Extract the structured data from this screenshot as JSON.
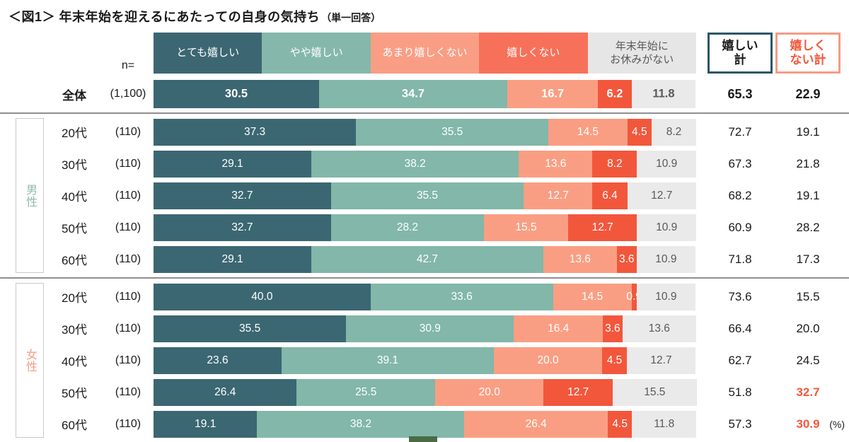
{
  "title": {
    "main": "＜図1＞ 年末年始を迎えるにあたっての自身の気持ち",
    "suffix": "（単一回答）"
  },
  "n_label": "n=",
  "unit_label": "(%)",
  "legend": [
    {
      "name": "very-happy",
      "lines": [
        "とても嬉しい"
      ],
      "color": "#3C6772",
      "text_color": "#FFFFFF"
    },
    {
      "name": "somewhat-happy",
      "lines": [
        "やや嬉しい"
      ],
      "color": "#85B8AA",
      "text_color": "#FFFFFF"
    },
    {
      "name": "not-very-happy",
      "lines": [
        "あまり嬉しくない"
      ],
      "color": "#F99E85",
      "text_color": "#FFFFFF"
    },
    {
      "name": "not-happy",
      "lines": [
        "嬉しくない"
      ],
      "color": "#F7715A",
      "text_color": "#FFFFFF"
    },
    {
      "name": "no-holiday",
      "lines": [
        "年末年始に",
        "お休みがない"
      ],
      "color": "#E6E6E6",
      "text_color": "#595959"
    }
  ],
  "segment_colors": [
    "#3B6772",
    "#82B7A9",
    "#FA9E83",
    "#F2573C",
    "#EAEAEA"
  ],
  "segment_text_colors": [
    "#FFFFFF",
    "#FFFFFF",
    "#FFFFFF",
    "#FFFFFF",
    "#595959"
  ],
  "totals_header": {
    "happy": {
      "lines": [
        "嬉しい",
        "計"
      ],
      "border_color": "#2C5661",
      "text_color": "#1A1A1A"
    },
    "unhappy": {
      "lines": [
        "嬉しく",
        "ない計"
      ],
      "border_color": "#F69B85",
      "text_color": "#F2583C"
    }
  },
  "sections": [
    {
      "group": null,
      "rows": [
        {
          "label": "全体",
          "n": "(1,100)",
          "values": [
            "30.5",
            "34.7",
            "16.7",
            "6.2",
            "11.8"
          ],
          "happy": "65.3",
          "unhappy": "22.9",
          "emphasis": true
        }
      ]
    },
    {
      "group": {
        "label": "男性",
        "color": "#8FB9AE"
      },
      "rows": [
        {
          "label": "20代",
          "n": "(110)",
          "values": [
            "37.3",
            "35.5",
            "14.5",
            "4.5",
            "8.2"
          ],
          "happy": "72.7",
          "unhappy": "19.1"
        },
        {
          "label": "30代",
          "n": "(110)",
          "values": [
            "29.1",
            "38.2",
            "13.6",
            "8.2",
            "10.9"
          ],
          "happy": "67.3",
          "unhappy": "21.8"
        },
        {
          "label": "40代",
          "n": "(110)",
          "values": [
            "32.7",
            "35.5",
            "12.7",
            "6.4",
            "12.7"
          ],
          "happy": "68.2",
          "unhappy": "19.1"
        },
        {
          "label": "50代",
          "n": "(110)",
          "values": [
            "32.7",
            "28.2",
            "15.5",
            "12.7",
            "10.9"
          ],
          "happy": "60.9",
          "unhappy": "28.2"
        },
        {
          "label": "60代",
          "n": "(110)",
          "values": [
            "29.1",
            "42.7",
            "13.6",
            "3.6",
            "10.9"
          ],
          "happy": "71.8",
          "unhappy": "17.3"
        }
      ]
    },
    {
      "group": {
        "label": "女性",
        "color": "#F49C82"
      },
      "rows": [
        {
          "label": "20代",
          "n": "(110)",
          "values": [
            "40.0",
            "33.6",
            "14.5",
            "0.9",
            "10.9"
          ],
          "happy": "73.6",
          "unhappy": "15.5"
        },
        {
          "label": "30代",
          "n": "(110)",
          "values": [
            "35.5",
            "30.9",
            "16.4",
            "3.6",
            "13.6"
          ],
          "happy": "66.4",
          "unhappy": "20.0"
        },
        {
          "label": "40代",
          "n": "(110)",
          "values": [
            "23.6",
            "39.1",
            "20.0",
            "4.5",
            "12.7"
          ],
          "happy": "62.7",
          "unhappy": "24.5"
        },
        {
          "label": "50代",
          "n": "(110)",
          "values": [
            "26.4",
            "25.5",
            "20.0",
            "12.7",
            "15.5"
          ],
          "happy": "51.8",
          "unhappy": "32.7",
          "unhappy_highlight": true
        },
        {
          "label": "60代",
          "n": "(110)",
          "values": [
            "19.1",
            "38.2",
            "26.4",
            "4.5",
            "11.8"
          ],
          "happy": "57.3",
          "unhappy": "30.9",
          "unhappy_highlight": true,
          "show_unit": true
        }
      ]
    }
  ],
  "misc": {
    "bottom_partial_color": "#4A6B45"
  },
  "chart_data": {
    "type": "bar",
    "orientation": "horizontal-stacked",
    "title": "＜図1＞ 年末年始を迎えるにあたっての自身の気持ち（単一回答）",
    "unit": "%",
    "xlim": [
      0,
      100
    ],
    "categories": [
      "全体",
      "男性20代",
      "男性30代",
      "男性40代",
      "男性50代",
      "男性60代",
      "女性20代",
      "女性30代",
      "女性40代",
      "女性50代",
      "女性60代"
    ],
    "sample_sizes": [
      1100,
      110,
      110,
      110,
      110,
      110,
      110,
      110,
      110,
      110,
      110
    ],
    "series": [
      {
        "name": "とても嬉しい",
        "color": "#3B6772",
        "values": [
          30.5,
          37.3,
          29.1,
          32.7,
          32.7,
          29.1,
          40.0,
          35.5,
          23.6,
          26.4,
          19.1
        ]
      },
      {
        "name": "やや嬉しい",
        "color": "#82B7A9",
        "values": [
          34.7,
          35.5,
          38.2,
          35.5,
          28.2,
          42.7,
          33.6,
          30.9,
          39.1,
          25.5,
          38.2
        ]
      },
      {
        "name": "あまり嬉しくない",
        "color": "#FA9E83",
        "values": [
          16.7,
          14.5,
          13.6,
          12.7,
          15.5,
          13.6,
          14.5,
          16.4,
          20.0,
          20.0,
          26.4
        ]
      },
      {
        "name": "嬉しくない",
        "color": "#F2573C",
        "values": [
          6.2,
          4.5,
          8.2,
          6.4,
          12.7,
          3.6,
          0.9,
          3.6,
          4.5,
          12.7,
          4.5
        ]
      },
      {
        "name": "年末年始にお休みがない",
        "color": "#EAEAEA",
        "values": [
          11.8,
          8.2,
          10.9,
          12.7,
          10.9,
          10.9,
          10.9,
          13.6,
          12.7,
          15.5,
          11.8
        ]
      }
    ],
    "totals": {
      "嬉しい計": [
        65.3,
        72.7,
        67.3,
        68.2,
        60.9,
        71.8,
        73.6,
        66.4,
        62.7,
        51.8,
        57.3
      ],
      "嬉しくない計": [
        22.9,
        19.1,
        21.8,
        19.1,
        28.2,
        17.3,
        15.5,
        20.0,
        24.5,
        32.7,
        30.9
      ]
    },
    "legend_position": "top",
    "grid": false
  }
}
